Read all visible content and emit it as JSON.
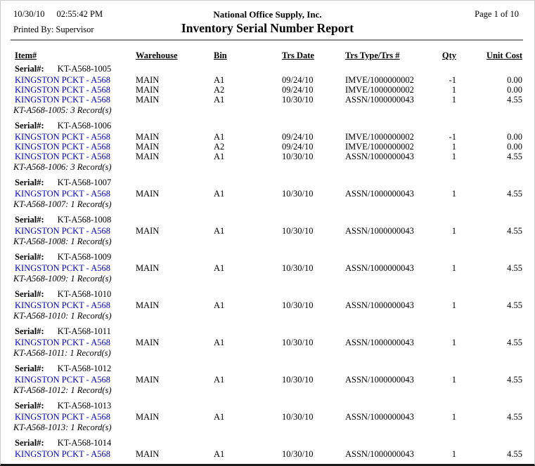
{
  "header": {
    "date": "10/30/10",
    "time": "02:55:42 PM",
    "printed_by": "Printed By: Supervisor",
    "company": "National Office Supply, Inc.",
    "title": "Inventory Serial Number Report",
    "page_indicator": "Page 1 of 10"
  },
  "colors": {
    "item_link": "#0000CC",
    "divider": "#8c8c8c"
  },
  "table": {
    "columns": [
      "Item#",
      "Warehouse",
      "Bin",
      "Trs Date",
      "Trs Type/Trs #",
      "Qty",
      "Unit Cost"
    ],
    "serial_label": "Serial#:",
    "blocks": [
      {
        "serial": "KT-A568-1005",
        "rows": [
          {
            "item": "KINGSTON PCKT - A568",
            "warehouse": "MAIN",
            "bin": "A1",
            "trs_date": "09/24/10",
            "trs_type": "IMVE/1000000002",
            "qty": "-1",
            "unit_cost": "0.00"
          },
          {
            "item": "KINGSTON PCKT - A568",
            "warehouse": "MAIN",
            "bin": "A2",
            "trs_date": "09/24/10",
            "trs_type": "IMVE/1000000002",
            "qty": "1",
            "unit_cost": "0.00"
          },
          {
            "item": "KINGSTON PCKT - A568",
            "warehouse": "MAIN",
            "bin": "A1",
            "trs_date": "10/30/10",
            "trs_type": "ASSN/1000000043",
            "qty": "1",
            "unit_cost": "4.55"
          }
        ],
        "summary": "KT-A568-1005: 3 Record(s)"
      },
      {
        "serial": "KT-A568-1006",
        "rows": [
          {
            "item": "KINGSTON PCKT - A568",
            "warehouse": "MAIN",
            "bin": "A1",
            "trs_date": "09/24/10",
            "trs_type": "IMVE/1000000002",
            "qty": "-1",
            "unit_cost": "0.00"
          },
          {
            "item": "KINGSTON PCKT - A568",
            "warehouse": "MAIN",
            "bin": "A2",
            "trs_date": "09/24/10",
            "trs_type": "IMVE/1000000002",
            "qty": "1",
            "unit_cost": "0.00"
          },
          {
            "item": "KINGSTON PCKT - A568",
            "warehouse": "MAIN",
            "bin": "A1",
            "trs_date": "10/30/10",
            "trs_type": "ASSN/1000000043",
            "qty": "1",
            "unit_cost": "4.55"
          }
        ],
        "summary": "KT-A568-1006: 3 Record(s)"
      },
      {
        "serial": "KT-A568-1007",
        "rows": [
          {
            "item": "KINGSTON PCKT - A568",
            "warehouse": "MAIN",
            "bin": "A1",
            "trs_date": "10/30/10",
            "trs_type": "ASSN/1000000043",
            "qty": "1",
            "unit_cost": "4.55"
          }
        ],
        "summary": "KT-A568-1007: 1 Record(s)"
      },
      {
        "serial": "KT-A568-1008",
        "rows": [
          {
            "item": "KINGSTON PCKT - A568",
            "warehouse": "MAIN",
            "bin": "A1",
            "trs_date": "10/30/10",
            "trs_type": "ASSN/1000000043",
            "qty": "1",
            "unit_cost": "4.55"
          }
        ],
        "summary": "KT-A568-1008: 1 Record(s)"
      },
      {
        "serial": "KT-A568-1009",
        "rows": [
          {
            "item": "KINGSTON PCKT - A568",
            "warehouse": "MAIN",
            "bin": "A1",
            "trs_date": "10/30/10",
            "trs_type": "ASSN/1000000043",
            "qty": "1",
            "unit_cost": "4.55"
          }
        ],
        "summary": "KT-A568-1009: 1 Record(s)"
      },
      {
        "serial": "KT-A568-1010",
        "rows": [
          {
            "item": "KINGSTON PCKT - A568",
            "warehouse": "MAIN",
            "bin": "A1",
            "trs_date": "10/30/10",
            "trs_type": "ASSN/1000000043",
            "qty": "1",
            "unit_cost": "4.55"
          }
        ],
        "summary": "KT-A568-1010: 1 Record(s)"
      },
      {
        "serial": "KT-A568-1011",
        "rows": [
          {
            "item": "KINGSTON PCKT - A568",
            "warehouse": "MAIN",
            "bin": "A1",
            "trs_date": "10/30/10",
            "trs_type": "ASSN/1000000043",
            "qty": "1",
            "unit_cost": "4.55"
          }
        ],
        "summary": "KT-A568-1011: 1 Record(s)"
      },
      {
        "serial": "KT-A568-1012",
        "rows": [
          {
            "item": "KINGSTON PCKT - A568",
            "warehouse": "MAIN",
            "bin": "A1",
            "trs_date": "10/30/10",
            "trs_type": "ASSN/1000000043",
            "qty": "1",
            "unit_cost": "4.55"
          }
        ],
        "summary": "KT-A568-1012: 1 Record(s)"
      },
      {
        "serial": "KT-A568-1013",
        "rows": [
          {
            "item": "KINGSTON PCKT - A568",
            "warehouse": "MAIN",
            "bin": "A1",
            "trs_date": "10/30/10",
            "trs_type": "ASSN/1000000043",
            "qty": "1",
            "unit_cost": "4.55"
          }
        ],
        "summary": "KT-A568-1013: 1 Record(s)"
      },
      {
        "serial": "KT-A568-1014",
        "rows": [
          {
            "item": "KINGSTON PCKT - A568",
            "warehouse": "MAIN",
            "bin": "A1",
            "trs_date": "10/30/10",
            "trs_type": "ASSN/1000000043",
            "qty": "1",
            "unit_cost": "4.55"
          }
        ]
      }
    ]
  }
}
